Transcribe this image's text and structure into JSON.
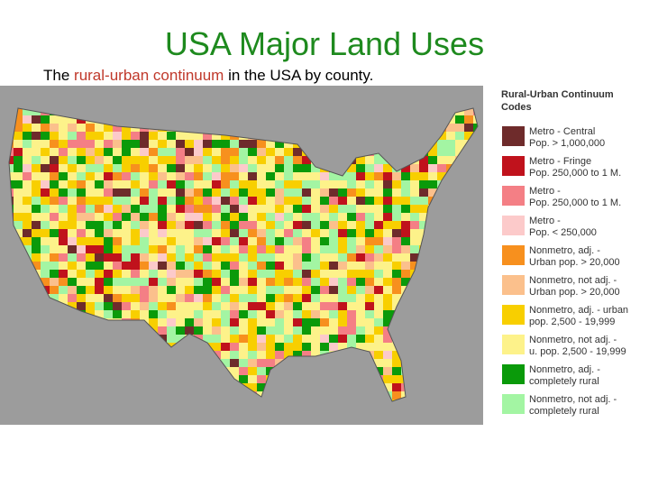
{
  "title": "USA Major Land Uses",
  "subtitle": {
    "before": "The",
    "highlight": "rural-urban continuum",
    "after": "in the USA by county."
  },
  "legend": {
    "title": [
      "Rural-Urban Continuum",
      "Codes"
    ],
    "items": [
      {
        "label": [
          "Metro - Central",
          "Pop. > 1,000,000"
        ],
        "color": "#6e2b2b"
      },
      {
        "label": [
          "Metro - Fringe",
          "Pop. 250,000 to 1 M."
        ],
        "color": "#c0121c"
      },
      {
        "label": [
          "Metro -",
          "Pop. 250,000 to 1 M."
        ],
        "color": "#f47f85"
      },
      {
        "label": [
          "Metro -",
          "Pop. < 250,000"
        ],
        "color": "#fccaca"
      },
      {
        "label": [
          "Nonmetro, adj. -",
          "Urban pop. > 20,000"
        ],
        "color": "#f7901e"
      },
      {
        "label": [
          "Nonmetro, not adj. -",
          "Urban pop. > 20,000"
        ],
        "color": "#fbc08c"
      },
      {
        "label": [
          "Nonmetro, adj. - urban",
          "pop. 2,500 - 19,999"
        ],
        "color": "#f8cf00"
      },
      {
        "label": [
          "Nonmetro, not adj. -",
          "u. pop. 2,500 - 19,999"
        ],
        "color": "#fdf28a"
      },
      {
        "label": [
          "Nonmetro, adj. -",
          "completely rural"
        ],
        "color": "#0a9a0a"
      },
      {
        "label": [
          "Nonmetro, not adj. -",
          "completely rural"
        ],
        "color": "#a3f5a3"
      }
    ]
  }
}
